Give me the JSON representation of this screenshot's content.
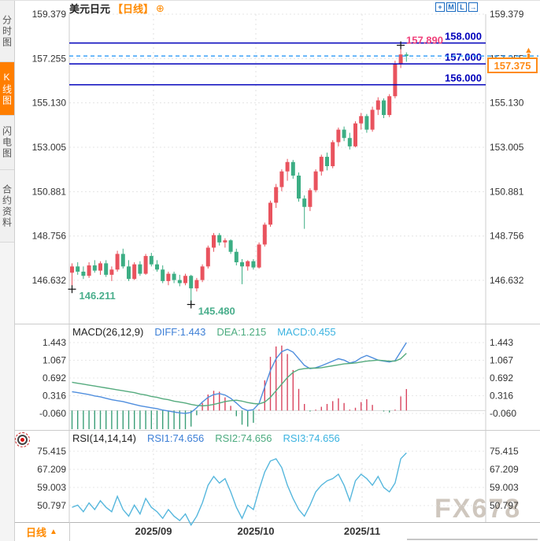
{
  "sidebar": {
    "tabs": [
      {
        "label": "分时图",
        "active": false
      },
      {
        "label": "K线图",
        "active": true
      },
      {
        "label": "闪电图",
        "active": false
      },
      {
        "label": "合约资料",
        "active": false
      }
    ]
  },
  "header": {
    "symbol": "美元日元",
    "period_tag": "【日线】"
  },
  "toolbar": {
    "icons": [
      "crosshair",
      "fit-chart",
      "axis-scale",
      "popout"
    ]
  },
  "price_box": {
    "label": "157.375"
  },
  "bottom": {
    "period_label": "日线",
    "dates": [
      "2025/09",
      "2025/10",
      "2025/11"
    ]
  },
  "watermark": "FX678",
  "colors": {
    "accent_orange": "#ff8a00",
    "navy_level": "#0000bb",
    "dashed_price_line": "#3fa2f7",
    "candle_up": "#e9535e",
    "candle_down": "#3cae84",
    "high_label_pink": "#f0437c",
    "low_label_green": "#4aae8c"
  },
  "chart_data": [
    {
      "type": "candlestick",
      "title": "美元日元 日线",
      "y_ticks": [
        "159.379",
        "157.255",
        "155.130",
        "153.005",
        "150.881",
        "148.756",
        "146.632"
      ],
      "y_tick_values": [
        159.379,
        157.255,
        155.13,
        153.005,
        150.881,
        148.756,
        146.632
      ],
      "x_labels": [
        "2025/09",
        "2025/10",
        "2025/11"
      ],
      "levels": [
        {
          "value": 158.0,
          "label": "158.000"
        },
        {
          "value": 157.0,
          "label": "157.000"
        },
        {
          "value": 156.0,
          "label": "156.000"
        }
      ],
      "current_price": {
        "value": 157.375,
        "label": "157.375"
      },
      "high_annotation": {
        "value": 157.89,
        "label": "157.890"
      },
      "low_annotations": [
        {
          "value": 146.211,
          "label": "146.211",
          "index": 0
        },
        {
          "value": 145.48,
          "label": "145.480",
          "index": 21
        }
      ],
      "candles": [
        [
          147.0,
          147.45,
          146.211,
          147.3
        ],
        [
          147.3,
          147.5,
          146.9,
          147.05
        ],
        [
          147.05,
          147.3,
          146.7,
          146.85
        ],
        [
          146.85,
          147.5,
          146.75,
          147.35
        ],
        [
          147.35,
          147.6,
          147.0,
          147.1
        ],
        [
          147.1,
          147.55,
          146.9,
          147.45
        ],
        [
          147.45,
          147.6,
          146.8,
          146.9
        ],
        [
          146.9,
          147.3,
          146.6,
          147.15
        ],
        [
          147.15,
          148.05,
          147.05,
          147.9
        ],
        [
          147.9,
          148.15,
          147.2,
          147.3
        ],
        [
          147.3,
          147.6,
          146.6,
          146.7
        ],
        [
          146.7,
          147.5,
          146.65,
          147.4
        ],
        [
          147.4,
          147.55,
          146.85,
          146.95
        ],
        [
          146.95,
          147.9,
          146.9,
          147.8
        ],
        [
          147.8,
          147.95,
          147.3,
          147.4
        ],
        [
          147.4,
          147.6,
          147.05,
          147.15
        ],
        [
          147.15,
          147.35,
          146.5,
          146.6
        ],
        [
          146.6,
          147.05,
          146.4,
          146.95
        ],
        [
          146.95,
          147.05,
          146.5,
          146.65
        ],
        [
          146.65,
          146.9,
          146.35,
          146.5
        ],
        [
          146.5,
          146.95,
          146.4,
          146.85
        ],
        [
          146.85,
          146.9,
          145.48,
          146.25
        ],
        [
          146.25,
          146.75,
          146.1,
          146.65
        ],
        [
          146.65,
          147.4,
          146.55,
          147.3
        ],
        [
          147.3,
          148.3,
          147.2,
          148.2
        ],
        [
          148.2,
          148.9,
          148.0,
          148.8
        ],
        [
          148.8,
          148.9,
          148.3,
          148.45
        ],
        [
          148.45,
          148.65,
          148.2,
          148.55
        ],
        [
          148.55,
          148.6,
          147.9,
          148.0
        ],
        [
          148.0,
          148.15,
          147.35,
          147.5
        ],
        [
          147.5,
          147.65,
          146.45,
          147.3
        ],
        [
          147.3,
          147.6,
          147.1,
          147.55
        ],
        [
          147.55,
          147.65,
          147.15,
          147.25
        ],
        [
          147.25,
          148.45,
          147.2,
          148.35
        ],
        [
          148.35,
          149.4,
          148.25,
          149.3
        ],
        [
          149.3,
          150.45,
          149.2,
          150.35
        ],
        [
          150.35,
          151.25,
          150.1,
          151.1
        ],
        [
          151.1,
          151.95,
          150.9,
          151.85
        ],
        [
          151.85,
          152.45,
          151.4,
          152.3
        ],
        [
          152.3,
          152.4,
          151.5,
          151.65
        ],
        [
          151.65,
          151.8,
          150.4,
          150.55
        ],
        [
          150.55,
          150.7,
          149.1,
          150.15
        ],
        [
          150.15,
          151.05,
          149.95,
          150.95
        ],
        [
          150.95,
          151.95,
          150.85,
          151.85
        ],
        [
          151.85,
          152.65,
          151.65,
          152.55
        ],
        [
          152.55,
          152.75,
          151.9,
          152.1
        ],
        [
          152.1,
          153.35,
          152.0,
          153.25
        ],
        [
          153.25,
          153.95,
          153.05,
          153.85
        ],
        [
          153.85,
          154.0,
          153.3,
          153.45
        ],
        [
          153.45,
          153.7,
          152.9,
          153.05
        ],
        [
          153.05,
          154.25,
          153.0,
          154.15
        ],
        [
          154.15,
          154.65,
          153.85,
          154.5
        ],
        [
          154.5,
          154.6,
          153.7,
          153.85
        ],
        [
          153.85,
          154.95,
          153.75,
          154.8
        ],
        [
          154.8,
          155.4,
          154.55,
          155.25
        ],
        [
          155.25,
          155.35,
          154.4,
          154.55
        ],
        [
          154.55,
          155.55,
          154.45,
          155.45
        ],
        [
          155.45,
          157.15,
          155.35,
          157.0
        ],
        [
          157.0,
          157.89,
          156.8,
          157.45
        ],
        [
          157.45,
          157.55,
          157.1,
          157.375
        ]
      ]
    },
    {
      "type": "macd",
      "header": {
        "title": "MACD(26,12,9)",
        "diff": "DIFF:1.443",
        "dea": "DEA:1.215",
        "macd": "MACD:0.455"
      },
      "y_ticks": [
        "1.443",
        "1.067",
        "0.692",
        "0.316",
        "-0.060"
      ],
      "y_tick_values": [
        1.443,
        1.067,
        0.692,
        0.316,
        -0.06
      ],
      "diff": [
        0.4,
        0.38,
        0.36,
        0.34,
        0.31,
        0.29,
        0.26,
        0.23,
        0.21,
        0.19,
        0.16,
        0.13,
        0.1,
        0.08,
        0.06,
        0.04,
        0.01,
        -0.01,
        -0.03,
        -0.05,
        -0.06,
        -0.04,
        0.06,
        0.18,
        0.28,
        0.34,
        0.36,
        0.33,
        0.26,
        0.16,
        0.05,
        0.0,
        0.02,
        0.15,
        0.5,
        0.85,
        1.1,
        1.25,
        1.3,
        1.24,
        1.1,
        0.96,
        0.89,
        0.91,
        0.95,
        1.0,
        1.05,
        1.1,
        1.07,
        1.01,
        1.04,
        1.12,
        1.17,
        1.12,
        1.07,
        1.05,
        1.03,
        1.06,
        1.25,
        1.443
      ],
      "dea": [
        0.6,
        0.58,
        0.56,
        0.54,
        0.52,
        0.5,
        0.48,
        0.46,
        0.44,
        0.42,
        0.4,
        0.38,
        0.35,
        0.33,
        0.3,
        0.28,
        0.25,
        0.23,
        0.2,
        0.18,
        0.16,
        0.13,
        0.11,
        0.1,
        0.11,
        0.13,
        0.16,
        0.19,
        0.21,
        0.22,
        0.2,
        0.17,
        0.15,
        0.14,
        0.18,
        0.28,
        0.42,
        0.56,
        0.7,
        0.81,
        0.87,
        0.89,
        0.9,
        0.9,
        0.91,
        0.93,
        0.95,
        0.97,
        0.99,
        1.0,
        1.01,
        1.03,
        1.05,
        1.06,
        1.07,
        1.06,
        1.05,
        1.05,
        1.1,
        1.215
      ],
      "colors": {
        "diff": "#4f8ede",
        "dea": "#55ab7e",
        "hist_up": "#d9455f",
        "hist_down": "#3a9e77"
      }
    },
    {
      "type": "rsi",
      "header": {
        "title": "RSI(14,14,14)",
        "rsi1": "RSI1:74.656",
        "rsi2": "RSI2:74.656",
        "rsi3": "RSI3:74.656"
      },
      "y_ticks": [
        "75.415",
        "67.209",
        "59.003",
        "50.797"
      ],
      "y_tick_values": [
        75.415,
        67.209,
        59.003,
        50.797
      ],
      "values": [
        50,
        51,
        48,
        52,
        49,
        53,
        50,
        48,
        55,
        49,
        46,
        51,
        47,
        54,
        50,
        48,
        45,
        49,
        46,
        44,
        47,
        42,
        46,
        52,
        60,
        64,
        61,
        63,
        57,
        50,
        45,
        51,
        49,
        58,
        66,
        71,
        72,
        68,
        60,
        54,
        49,
        46,
        51,
        57,
        60,
        62,
        63,
        65,
        60,
        53,
        62,
        65,
        63,
        60,
        64,
        59,
        57,
        61,
        72,
        74.656
      ],
      "color": "#56b7dd"
    }
  ]
}
